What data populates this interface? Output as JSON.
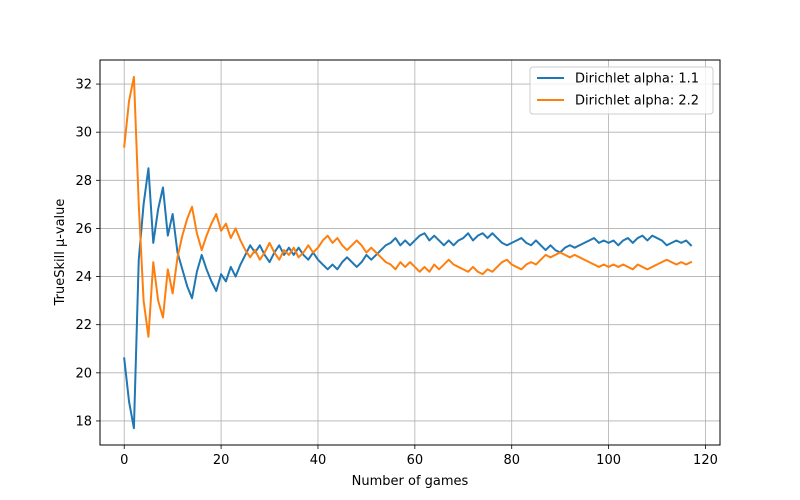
{
  "chart_data": {
    "type": "line",
    "title": "",
    "xlabel": "Number of games",
    "ylabel": "TrueSkill μ-value",
    "xlim": [
      -5,
      123
    ],
    "ylim": [
      17,
      33
    ],
    "xticks": [
      0,
      20,
      40,
      60,
      80,
      100,
      120
    ],
    "yticks": [
      18,
      20,
      22,
      24,
      26,
      28,
      30,
      32
    ],
    "x_tick_labels": [
      "0",
      "20",
      "40",
      "60",
      "80",
      "100",
      "120"
    ],
    "y_tick_labels": [
      "18",
      "20",
      "22",
      "24",
      "26",
      "28",
      "30",
      "32"
    ],
    "grid": true,
    "legend_position": "top-right",
    "series": [
      {
        "name": "Dirichlet alpha: 1.1",
        "color": "#1f77b4",
        "x": [
          0,
          1,
          2,
          3,
          4,
          5,
          6,
          7,
          8,
          9,
          10,
          11,
          12,
          13,
          14,
          15,
          16,
          17,
          18,
          19,
          20,
          21,
          22,
          23,
          24,
          25,
          26,
          27,
          28,
          29,
          30,
          31,
          32,
          33,
          34,
          35,
          36,
          37,
          38,
          39,
          40,
          41,
          42,
          43,
          44,
          45,
          46,
          47,
          48,
          49,
          50,
          51,
          52,
          53,
          54,
          55,
          56,
          57,
          58,
          59,
          60,
          61,
          62,
          63,
          64,
          65,
          66,
          67,
          68,
          69,
          70,
          71,
          72,
          73,
          74,
          75,
          76,
          77,
          78,
          79,
          80,
          81,
          82,
          83,
          84,
          85,
          86,
          87,
          88,
          89,
          90,
          91,
          92,
          93,
          94,
          95,
          96,
          97,
          98,
          99,
          100,
          101,
          102,
          103,
          104,
          105,
          106,
          107,
          108,
          109,
          110,
          111,
          112,
          113,
          114,
          115,
          116,
          117
        ],
        "y": [
          20.6,
          18.8,
          17.7,
          24.7,
          27.0,
          28.5,
          25.4,
          26.8,
          27.7,
          25.7,
          26.6,
          25.0,
          24.3,
          23.6,
          23.1,
          24.2,
          24.9,
          24.3,
          23.8,
          23.4,
          24.1,
          23.8,
          24.4,
          24.0,
          24.5,
          24.9,
          25.3,
          25.0,
          25.3,
          24.9,
          24.6,
          25.0,
          25.3,
          24.9,
          25.2,
          24.9,
          25.2,
          24.9,
          24.7,
          25.0,
          24.7,
          24.5,
          24.3,
          24.5,
          24.3,
          24.6,
          24.8,
          24.6,
          24.4,
          24.6,
          24.9,
          24.7,
          24.9,
          25.1,
          25.3,
          25.4,
          25.6,
          25.3,
          25.5,
          25.3,
          25.5,
          25.7,
          25.8,
          25.5,
          25.7,
          25.5,
          25.3,
          25.5,
          25.3,
          25.5,
          25.6,
          25.8,
          25.5,
          25.7,
          25.8,
          25.6,
          25.8,
          25.6,
          25.4,
          25.3,
          25.4,
          25.5,
          25.6,
          25.4,
          25.3,
          25.5,
          25.3,
          25.1,
          25.3,
          25.1,
          25.0,
          25.2,
          25.3,
          25.2,
          25.3,
          25.4,
          25.5,
          25.6,
          25.4,
          25.5,
          25.4,
          25.5,
          25.3,
          25.5,
          25.6,
          25.4,
          25.6,
          25.7,
          25.5,
          25.7,
          25.6,
          25.5,
          25.3,
          25.4,
          25.5,
          25.4,
          25.5,
          25.3
        ]
      },
      {
        "name": "Dirichlet alpha: 2.2",
        "color": "#ff7f0e",
        "x": [
          0,
          1,
          2,
          3,
          4,
          5,
          6,
          7,
          8,
          9,
          10,
          11,
          12,
          13,
          14,
          15,
          16,
          17,
          18,
          19,
          20,
          21,
          22,
          23,
          24,
          25,
          26,
          27,
          28,
          29,
          30,
          31,
          32,
          33,
          34,
          35,
          36,
          37,
          38,
          39,
          40,
          41,
          42,
          43,
          44,
          45,
          46,
          47,
          48,
          49,
          50,
          51,
          52,
          53,
          54,
          55,
          56,
          57,
          58,
          59,
          60,
          61,
          62,
          63,
          64,
          65,
          66,
          67,
          68,
          69,
          70,
          71,
          72,
          73,
          74,
          75,
          76,
          77,
          78,
          79,
          80,
          81,
          82,
          83,
          84,
          85,
          86,
          87,
          88,
          89,
          90,
          91,
          92,
          93,
          94,
          95,
          96,
          97,
          98,
          99,
          100,
          101,
          102,
          103,
          104,
          105,
          106,
          107,
          108,
          109,
          110,
          111,
          112,
          113,
          114,
          115,
          116,
          117
        ],
        "y": [
          29.4,
          31.3,
          32.3,
          27.0,
          23.0,
          21.5,
          24.6,
          23.0,
          22.3,
          24.3,
          23.3,
          24.8,
          25.7,
          26.4,
          26.9,
          25.8,
          25.1,
          25.7,
          26.2,
          26.6,
          25.9,
          26.2,
          25.6,
          26.0,
          25.5,
          25.1,
          24.8,
          25.1,
          24.7,
          25.0,
          25.4,
          25.0,
          24.7,
          25.1,
          24.9,
          25.2,
          24.8,
          25.0,
          25.3,
          25.0,
          25.2,
          25.5,
          25.7,
          25.4,
          25.6,
          25.3,
          25.1,
          25.3,
          25.5,
          25.3,
          25.0,
          25.2,
          25.0,
          24.8,
          24.6,
          24.5,
          24.3,
          24.6,
          24.4,
          24.6,
          24.4,
          24.2,
          24.4,
          24.2,
          24.5,
          24.3,
          24.5,
          24.7,
          24.5,
          24.4,
          24.3,
          24.2,
          24.4,
          24.2,
          24.1,
          24.3,
          24.2,
          24.4,
          24.6,
          24.7,
          24.5,
          24.4,
          24.3,
          24.5,
          24.6,
          24.5,
          24.7,
          24.9,
          24.8,
          24.9,
          25.0,
          24.9,
          24.8,
          24.9,
          24.8,
          24.7,
          24.6,
          24.5,
          24.4,
          24.5,
          24.4,
          24.5,
          24.4,
          24.5,
          24.4,
          24.3,
          24.5,
          24.4,
          24.3,
          24.4,
          24.5,
          24.6,
          24.7,
          24.6,
          24.5,
          24.6,
          24.5,
          24.6
        ]
      }
    ]
  }
}
